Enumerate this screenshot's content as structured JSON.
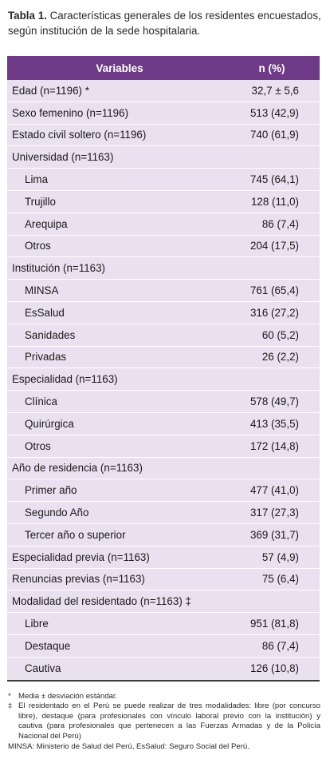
{
  "caption": {
    "label": "Tabla 1.",
    "text": " Características generales de los residentes encuestados, según institución de la sede hospitalaria."
  },
  "table": {
    "headers": [
      "Variables",
      "n (%)"
    ],
    "rows": [
      {
        "label": "Edad (n=1196) *",
        "value": "32,7 ± 5,6",
        "indent": false
      },
      {
        "label": "Sexo femenino (n=1196)",
        "value": "513 (42,9)",
        "indent": false
      },
      {
        "label": "Estado civil soltero (n=1196)",
        "value": "740 (61,9)",
        "indent": false
      },
      {
        "label": "Universidad (n=1163)",
        "value": "",
        "indent": false
      },
      {
        "label": "Lima",
        "value": "745 (64,1)",
        "indent": true
      },
      {
        "label": "Trujillo",
        "value": "128 (11,0)",
        "indent": true
      },
      {
        "label": "Arequipa",
        "value": "86 (7,4)",
        "indent": true
      },
      {
        "label": "Otros",
        "value": "204 (17,5)",
        "indent": true
      },
      {
        "label": "Institución (n=1163)",
        "value": "",
        "indent": false
      },
      {
        "label": "MINSA",
        "value": "761 (65,4)",
        "indent": true
      },
      {
        "label": "EsSalud",
        "value": "316 (27,2)",
        "indent": true
      },
      {
        "label": "Sanidades",
        "value": "60 (5,2)",
        "indent": true
      },
      {
        "label": "Privadas",
        "value": "26 (2,2)",
        "indent": true
      },
      {
        "label": "Especialidad (n=1163)",
        "value": "",
        "indent": false
      },
      {
        "label": "Clínica",
        "value": "578 (49,7)",
        "indent": true
      },
      {
        "label": "Quirúrgica",
        "value": "413 (35,5)",
        "indent": true
      },
      {
        "label": "Otros",
        "value": "172 (14,8)",
        "indent": true
      },
      {
        "label": "Año de residencia (n=1163)",
        "value": "",
        "indent": false
      },
      {
        "label": "Primer año",
        "value": "477 (41,0)",
        "indent": true
      },
      {
        "label": "Segundo Año",
        "value": "317 (27,3)",
        "indent": true
      },
      {
        "label": "Tercer año o superior",
        "value": "369 (31,7)",
        "indent": true
      },
      {
        "label": "Especialidad previa (n=1163)",
        "value": "57 (4,9)",
        "indent": false
      },
      {
        "label": "Renuncias previas (n=1163)",
        "value": "75 (6,4)",
        "indent": false
      },
      {
        "label": "Modalidad del residentado (n=1163) ‡",
        "value": "",
        "indent": false
      },
      {
        "label": "Libre",
        "value": "951 (81,8)",
        "indent": true
      },
      {
        "label": "Destaque",
        "value": "86 (7,4)",
        "indent": true
      },
      {
        "label": "Cautiva",
        "value": "126 (10,8)",
        "indent": true
      }
    ]
  },
  "footnotes": {
    "star_mark": "*",
    "star_text": "Media ± desviación estándar.",
    "dagger_mark": "‡",
    "dagger_text": "El residentado en el Perú se puede realizar de tres modalidades: libre (por concurso libre), destaque (para profesionales con vínculo laboral previo con la institución) y cautiva (para profesionales que pertenecen a las Fuerzas Armadas y de la Policía Nacional del Perú)",
    "abbrev": "MINSA: Ministerio de Salud del Perú, EsSalud: Seguro Social del Perú."
  }
}
